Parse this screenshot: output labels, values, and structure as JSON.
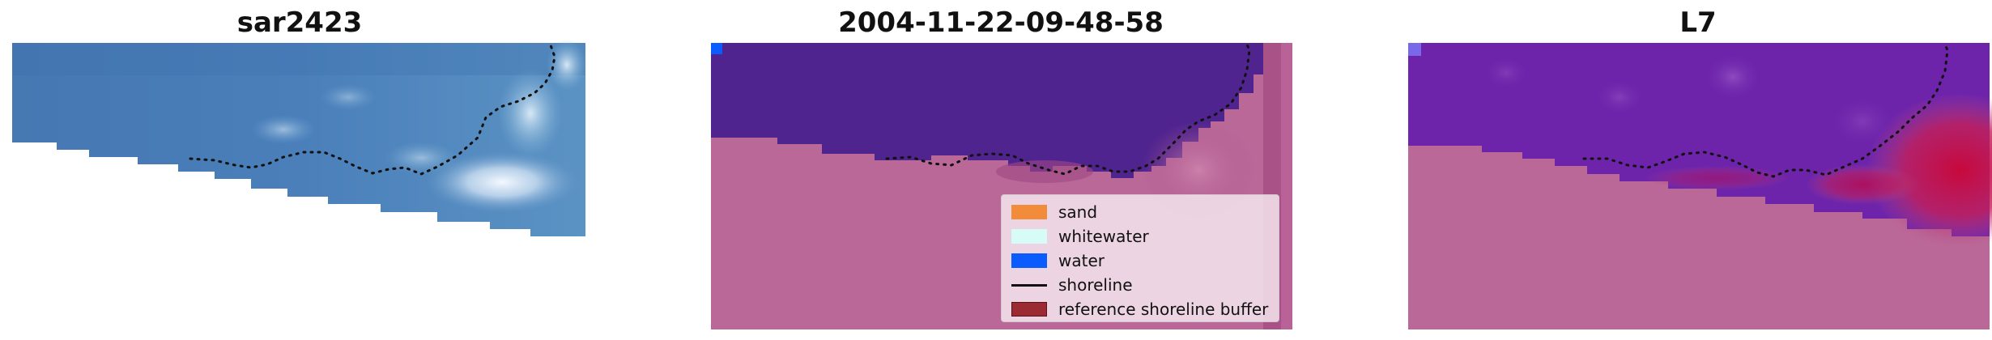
{
  "panels": [
    {
      "title": "sar2423"
    },
    {
      "title": "2004-11-22-09-48-58"
    },
    {
      "title": "L7"
    }
  ],
  "legend": {
    "items": [
      {
        "label": "sand",
        "kind": "patch",
        "color": "#f28b3a"
      },
      {
        "label": "whitewater",
        "kind": "patch",
        "color": "#d7fbf7"
      },
      {
        "label": "water",
        "kind": "patch",
        "color": "#0a5cff"
      },
      {
        "label": "shoreline",
        "kind": "line",
        "color": "#111111"
      },
      {
        "label": "reference shoreline buffer",
        "kind": "patch",
        "color": "#9b2a33"
      }
    ]
  },
  "colors": {
    "rgb_water_blue": "#4d80b8",
    "class_water_overlay": "#50248f",
    "class_land_overlay": "#ba6898",
    "prob_water": "#6e24aa",
    "prob_high": "#cc1046",
    "prob_land": "#ba6898"
  }
}
